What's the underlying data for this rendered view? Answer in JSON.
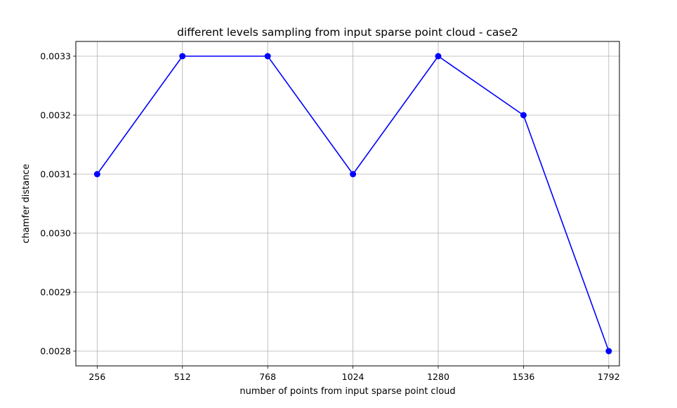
{
  "chart_data": {
    "type": "line",
    "title": "different levels sampling from input sparse point cloud - case2",
    "xlabel": "number of points from input sparse point cloud",
    "ylabel": "chamfer distance",
    "x": [
      256,
      512,
      768,
      1024,
      1280,
      1536,
      1792
    ],
    "x_tick_labels": [
      "256",
      "512",
      "768",
      "1024",
      "1280",
      "1536",
      "1792"
    ],
    "xlim": [
      192,
      1824
    ],
    "y_ticks": [
      0.0028,
      0.0029,
      0.003,
      0.0031,
      0.0032,
      0.0033
    ],
    "y_tick_labels": [
      "0.0028",
      "0.0029",
      "0.0030",
      "0.0031",
      "0.0032",
      "0.0033"
    ],
    "ylim": [
      0.002775,
      0.003325
    ],
    "grid": true,
    "series": [
      {
        "values": [
          0.0031,
          0.0033,
          0.0033,
          0.0031,
          0.0033,
          0.0032,
          0.0028
        ],
        "color": "#0000ff",
        "marker": "circle"
      }
    ]
  }
}
